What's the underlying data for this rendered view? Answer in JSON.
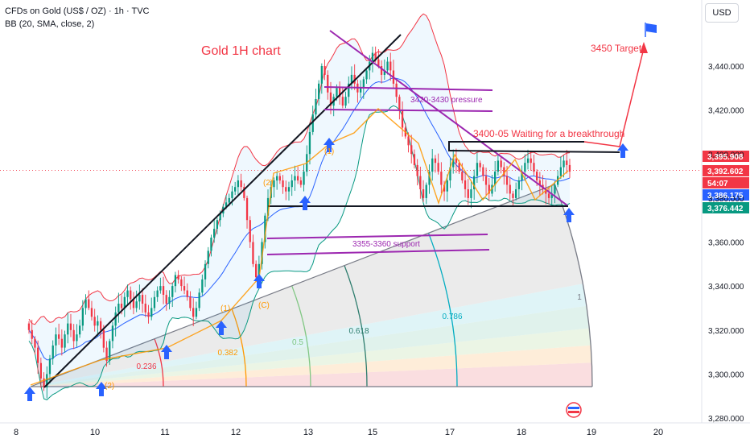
{
  "header": {
    "symbol_line": "CFDs on Gold (US$ / OZ) · 1h · TVC",
    "indicator_line": "BB (20, SMA, close, 2)",
    "currency": "USD"
  },
  "chart_data": {
    "type": "candlestick",
    "title": "Gold 1H chart",
    "x_ticks": [
      "8",
      "10",
      "11",
      "12",
      "13",
      "15",
      "17",
      "18",
      "19",
      "20"
    ],
    "y_ticks": [
      "3,440.000",
      "3,420.000",
      "3,400.000",
      "3,380.000",
      "3,360.000",
      "3,340.000",
      "3,320.000",
      "3,300.000",
      "3,280.000"
    ],
    "y_tick_values": [
      3440,
      3420,
      3400,
      3380,
      3360,
      3340,
      3320,
      3300,
      3280
    ],
    "ylim": [
      3279,
      3455
    ],
    "price_tags": [
      {
        "text": "3,395.908",
        "value": 3395.908,
        "color": "#f23645"
      },
      {
        "text": "3,392.602",
        "value": 3392.602,
        "color": "#f23645"
      },
      {
        "text": "54:07",
        "value": 3388.5,
        "color": "#f23645"
      },
      {
        "text": "3,386.175",
        "value": 3386.175,
        "color": "#2962ff"
      },
      {
        "text": "3,376.442",
        "value": 3376.442,
        "color": "#089981"
      }
    ],
    "annotations": {
      "pressure": "3420-3430 pressure",
      "breakout": "3400-05 Waiting for a breakthrough",
      "support": "3355-3360 support",
      "target": "3450 Target"
    },
    "fib_levels": [
      "0.236",
      "0.382",
      "0.5",
      "0.618",
      "0.786",
      "1"
    ],
    "wave_labels": [
      "(1)",
      "(2)",
      "(C)"
    ],
    "closes": [
      3320,
      3316,
      3312,
      3305,
      3298,
      3294,
      3300,
      3307,
      3313,
      3318,
      3316,
      3312,
      3318,
      3323,
      3320,
      3315,
      3318,
      3322,
      3330,
      3334,
      3330,
      3326,
      3322,
      3324,
      3320,
      3312,
      3306,
      3315,
      3322,
      3328,
      3332,
      3330,
      3335,
      3338,
      3334,
      3330,
      3333,
      3336,
      3332,
      3328,
      3326,
      3330,
      3335,
      3338,
      3340,
      3336,
      3332,
      3335,
      3340,
      3345,
      3343,
      3340,
      3338,
      3335,
      3330,
      3326,
      3330,
      3337,
      3343,
      3350,
      3356,
      3362,
      3366,
      3370,
      3373,
      3376,
      3378,
      3380,
      3383,
      3385,
      3388,
      3385,
      3380,
      3370,
      3360,
      3350,
      3344,
      3350,
      3360,
      3372,
      3380,
      3385,
      3388,
      3390,
      3388,
      3385,
      3383,
      3385,
      3388,
      3390,
      3388,
      3386,
      3392,
      3400,
      3410,
      3418,
      3425,
      3432,
      3440,
      3436,
      3428,
      3422,
      3426,
      3430,
      3426,
      3422,
      3426,
      3432,
      3436,
      3432,
      3428,
      3430,
      3434,
      3438,
      3442,
      3446,
      3443,
      3440,
      3436,
      3438,
      3442,
      3438,
      3432,
      3426,
      3420,
      3412,
      3408,
      3404,
      3400,
      3395,
      3390,
      3384,
      3380,
      3386,
      3392,
      3398,
      3396,
      3392,
      3386,
      3383,
      3388,
      3394,
      3398,
      3396,
      3392,
      3388,
      3384,
      3380,
      3384,
      3390,
      3396,
      3394,
      3390,
      3386,
      3382,
      3386,
      3392,
      3397,
      3394,
      3390,
      3386,
      3382,
      3380,
      3384,
      3388,
      3392,
      3396,
      3398,
      3396,
      3392,
      3388,
      3386,
      3384,
      3382,
      3380,
      3382,
      3386,
      3390,
      3394,
      3397,
      3395,
      3392
    ]
  }
}
